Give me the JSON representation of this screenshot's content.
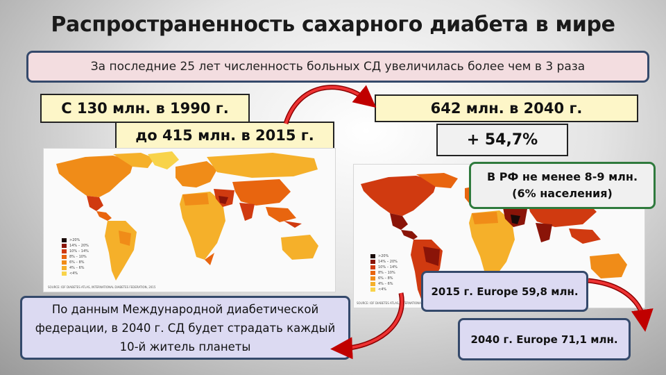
{
  "title": "Распространенность сахарного диабета в мире",
  "subtitle": "За последние 25 лет численность больных СД увеличилась более чем в 3 раза",
  "stats": {
    "from_1990": "С 130 млн. в 1990 г.",
    "to_2015": "до 415 млн. в 2015 г.",
    "forecast_2040": "642 млн. в 2040 г.",
    "increase": "+ 54,7%"
  },
  "russia_note": "В РФ не менее  8-9 млн. (6% населения)",
  "idf_note": "По данным Международной диабетической федерации, в 2040 г. СД будет страдать каждый 10-й житель планеты",
  "europe": {
    "y2015": "2015 г. Europe 59,8 млн.",
    "y2040": "2040 г. Europe 71,1 млн."
  },
  "map_legend": {
    "items": [
      {
        "label": ">20%",
        "color": "#1a0a08"
      },
      {
        "label": "14% – 20%",
        "color": "#8a1408"
      },
      {
        "label": "10% – 14%",
        "color": "#d03a10"
      },
      {
        "label": "8% – 10%",
        "color": "#e8650f"
      },
      {
        "label": "6% – 8%",
        "color": "#f08c18"
      },
      {
        "label": "4% – 6%",
        "color": "#f5b02a"
      },
      {
        "label": "<4%",
        "color": "#f8d34a"
      }
    ]
  },
  "map_source": "SOURCE: IDF DIABETES ATLAS, INTERNATIONAL DIABETES FEDERATION, 2015",
  "colors": {
    "title_text": "#1a1a1a",
    "callout_border": "#34496b",
    "russia_border": "#2f7a3d",
    "arrow": "#c00000"
  }
}
